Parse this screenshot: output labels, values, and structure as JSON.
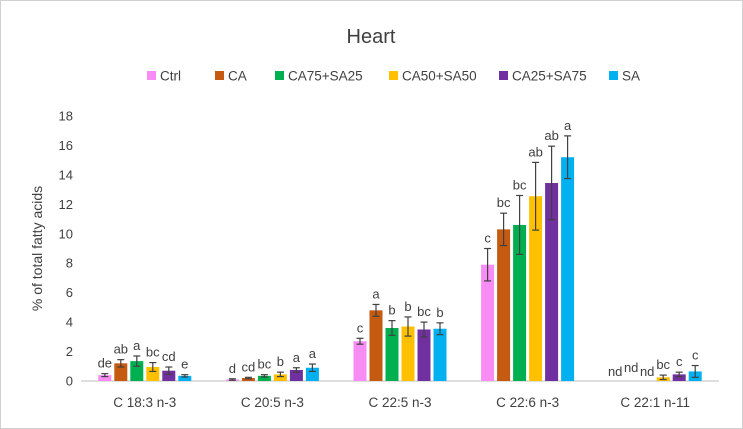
{
  "chart_data": {
    "type": "bar",
    "title": "Heart",
    "xlabel": "",
    "ylabel": "% of total fatty acids",
    "ylim": [
      0,
      18
    ],
    "yticks": [
      0,
      2,
      4,
      6,
      8,
      10,
      12,
      14,
      16,
      18
    ],
    "grid": false,
    "legend_position": "top",
    "categories": [
      "C 18:3 n-3",
      "C 20:5 n-3",
      "C 22:5 n-3",
      "C 22:6 n-3",
      "C 22:1 n-11"
    ],
    "series": [
      {
        "name": "Ctrl",
        "color": "#f78cf4",
        "values": [
          0.4,
          0.1,
          2.7,
          7.9,
          0
        ],
        "errors": [
          0.1,
          0.05,
          0.2,
          1.1,
          0
        ],
        "labels": [
          "de",
          "d",
          "c",
          "c",
          "nd"
        ]
      },
      {
        "name": "CA",
        "color": "#c55a11",
        "values": [
          1.2,
          0.2,
          4.8,
          10.3,
          0
        ],
        "errors": [
          0.25,
          0.05,
          0.4,
          1.1,
          0
        ],
        "labels": [
          "ab",
          "cd",
          "a",
          "bc",
          "nd"
        ]
      },
      {
        "name": "CA75+SA25",
        "color": "#00b050",
        "values": [
          1.35,
          0.35,
          3.6,
          10.6,
          0
        ],
        "errors": [
          0.35,
          0.08,
          0.5,
          2.0,
          0
        ],
        "labels": [
          "a",
          "bc",
          "b",
          "bc",
          "nd"
        ]
      },
      {
        "name": "CA50+SA50",
        "color": "#ffc000",
        "values": [
          0.95,
          0.45,
          3.7,
          12.55,
          0.25
        ],
        "errors": [
          0.3,
          0.15,
          0.65,
          2.3,
          0.15
        ],
        "labels": [
          "bc",
          "b",
          "b",
          "ab",
          "bc"
        ]
      },
      {
        "name": "CA25+SA75",
        "color": "#7030a0",
        "values": [
          0.7,
          0.75,
          3.5,
          13.45,
          0.45
        ],
        "errors": [
          0.25,
          0.15,
          0.5,
          2.5,
          0.15
        ],
        "labels": [
          "cd",
          "a",
          "bc",
          "ab",
          "c"
        ]
      },
      {
        "name": "SA",
        "color": "#00b0f0",
        "values": [
          0.35,
          0.9,
          3.55,
          15.2,
          0.65
        ],
        "errors": [
          0.08,
          0.25,
          0.4,
          1.45,
          0.4
        ],
        "labels": [
          "e",
          "a",
          "b",
          "a",
          "c"
        ]
      }
    ]
  }
}
